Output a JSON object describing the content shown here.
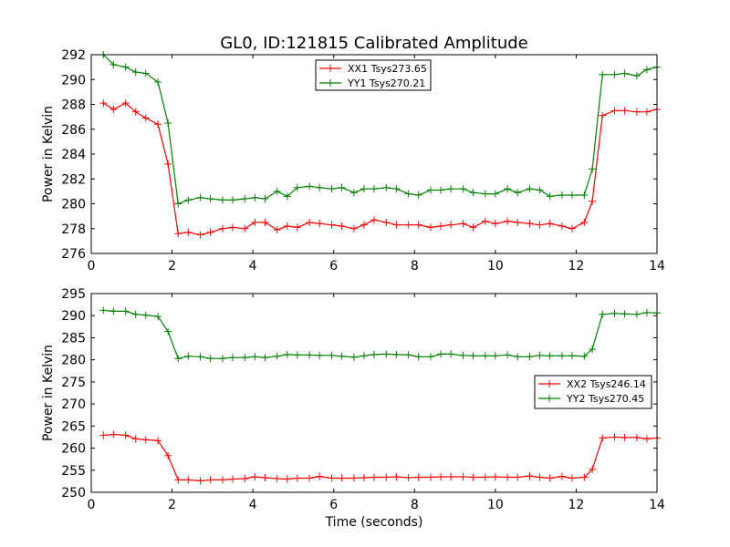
{
  "figure": {
    "title": "GL0, ID:121815 Calibrated Amplitude"
  },
  "chart_data": [
    {
      "type": "line",
      "ylabel": "Power in Kelvin",
      "xlabel": "",
      "xlim": [
        0,
        14
      ],
      "ylim": [
        276,
        292
      ],
      "xticks": [
        0,
        2,
        4,
        6,
        8,
        10,
        12,
        14
      ],
      "yticks": [
        276,
        278,
        280,
        282,
        284,
        286,
        288,
        290,
        292
      ],
      "grid": false,
      "legend_position": "upper-center",
      "x": [
        0.3,
        0.55,
        0.85,
        1.1,
        1.35,
        1.65,
        1.9,
        2.15,
        2.4,
        2.7,
        2.95,
        3.25,
        3.5,
        3.8,
        4.05,
        4.3,
        4.6,
        4.85,
        5.1,
        5.4,
        5.65,
        5.95,
        6.2,
        6.5,
        6.75,
        7.0,
        7.3,
        7.55,
        7.85,
        8.1,
        8.4,
        8.65,
        8.9,
        9.2,
        9.45,
        9.75,
        10.0,
        10.3,
        10.55,
        10.85,
        11.1,
        11.35,
        11.65,
        11.9,
        12.2,
        12.4,
        12.65,
        12.95,
        13.2,
        13.5,
        13.75,
        14.0
      ],
      "series": [
        {
          "name": "XX1 Tsys273.65",
          "color": "#ff0000",
          "values": [
            288.1,
            287.6,
            288.1,
            287.4,
            286.9,
            286.4,
            283.2,
            277.6,
            277.7,
            277.5,
            277.7,
            278.0,
            278.1,
            278.0,
            278.5,
            278.5,
            277.9,
            278.2,
            278.1,
            278.5,
            278.4,
            278.3,
            278.2,
            278.0,
            278.3,
            278.7,
            278.5,
            278.3,
            278.3,
            278.3,
            278.1,
            278.2,
            278.3,
            278.4,
            278.1,
            278.6,
            278.4,
            278.6,
            278.5,
            278.4,
            278.3,
            278.4,
            278.2,
            278.0,
            278.5,
            280.2,
            287.1,
            287.5,
            287.5,
            287.4,
            287.4,
            287.6
          ]
        },
        {
          "name": "YY1 Tsys270.21",
          "color": "#008000",
          "values": [
            292.0,
            291.2,
            291.0,
            290.6,
            290.5,
            289.8,
            286.5,
            280.0,
            280.3,
            280.5,
            280.4,
            280.3,
            280.3,
            280.4,
            280.5,
            280.4,
            281.0,
            280.6,
            281.3,
            281.4,
            281.3,
            281.2,
            281.3,
            280.9,
            281.2,
            281.2,
            281.3,
            281.2,
            280.8,
            280.7,
            281.1,
            281.1,
            281.2,
            281.2,
            280.9,
            280.8,
            280.8,
            281.2,
            280.9,
            281.2,
            281.1,
            280.6,
            280.7,
            280.7,
            280.7,
            282.8,
            290.4,
            290.4,
            290.5,
            290.3,
            290.8,
            291.0
          ]
        }
      ]
    },
    {
      "type": "line",
      "ylabel": "Power in Kelvin",
      "xlabel": "Time (seconds)",
      "xlim": [
        0,
        14
      ],
      "ylim": [
        250,
        295
      ],
      "xticks": [
        0,
        2,
        4,
        6,
        8,
        10,
        12,
        14
      ],
      "yticks": [
        250,
        255,
        260,
        265,
        270,
        275,
        280,
        285,
        290,
        295
      ],
      "grid": false,
      "legend_position": "center-right",
      "x": [
        0.3,
        0.55,
        0.85,
        1.1,
        1.35,
        1.65,
        1.9,
        2.15,
        2.4,
        2.7,
        2.95,
        3.25,
        3.5,
        3.8,
        4.05,
        4.3,
        4.6,
        4.85,
        5.1,
        5.4,
        5.65,
        5.95,
        6.2,
        6.5,
        6.75,
        7.0,
        7.3,
        7.55,
        7.85,
        8.1,
        8.4,
        8.65,
        8.9,
        9.2,
        9.45,
        9.75,
        10.0,
        10.3,
        10.55,
        10.85,
        11.1,
        11.35,
        11.65,
        11.9,
        12.2,
        12.4,
        12.65,
        12.95,
        13.2,
        13.5,
        13.75,
        14.0
      ],
      "series": [
        {
          "name": "XX2 Tsys246.14",
          "color": "#ff0000",
          "values": [
            262.9,
            263.1,
            262.9,
            262.1,
            261.9,
            261.7,
            258.3,
            252.8,
            252.8,
            252.6,
            252.8,
            252.8,
            253.0,
            253.1,
            253.5,
            253.3,
            253.1,
            253.0,
            253.2,
            253.2,
            253.6,
            253.2,
            253.2,
            253.2,
            253.3,
            253.4,
            253.4,
            253.5,
            253.3,
            253.4,
            253.4,
            253.5,
            253.5,
            253.5,
            253.4,
            253.4,
            253.5,
            253.4,
            253.4,
            253.7,
            253.4,
            253.2,
            253.6,
            253.2,
            253.4,
            255.2,
            262.3,
            262.5,
            262.4,
            262.4,
            262.1,
            262.3
          ]
        },
        {
          "name": "YY2 Tsys270.45",
          "color": "#008000",
          "values": [
            291.2,
            291.0,
            291.0,
            290.3,
            290.1,
            289.8,
            286.4,
            280.3,
            280.8,
            280.7,
            280.3,
            280.3,
            280.5,
            280.5,
            280.7,
            280.5,
            280.8,
            281.2,
            281.1,
            281.1,
            281.0,
            281.0,
            280.8,
            280.6,
            280.9,
            281.2,
            281.3,
            281.2,
            281.1,
            280.7,
            280.7,
            281.3,
            281.3,
            281.0,
            280.9,
            280.9,
            280.9,
            281.1,
            280.7,
            280.7,
            281.0,
            280.9,
            280.9,
            280.9,
            280.8,
            282.4,
            290.3,
            290.5,
            290.4,
            290.3,
            290.7,
            290.6
          ]
        }
      ]
    }
  ]
}
